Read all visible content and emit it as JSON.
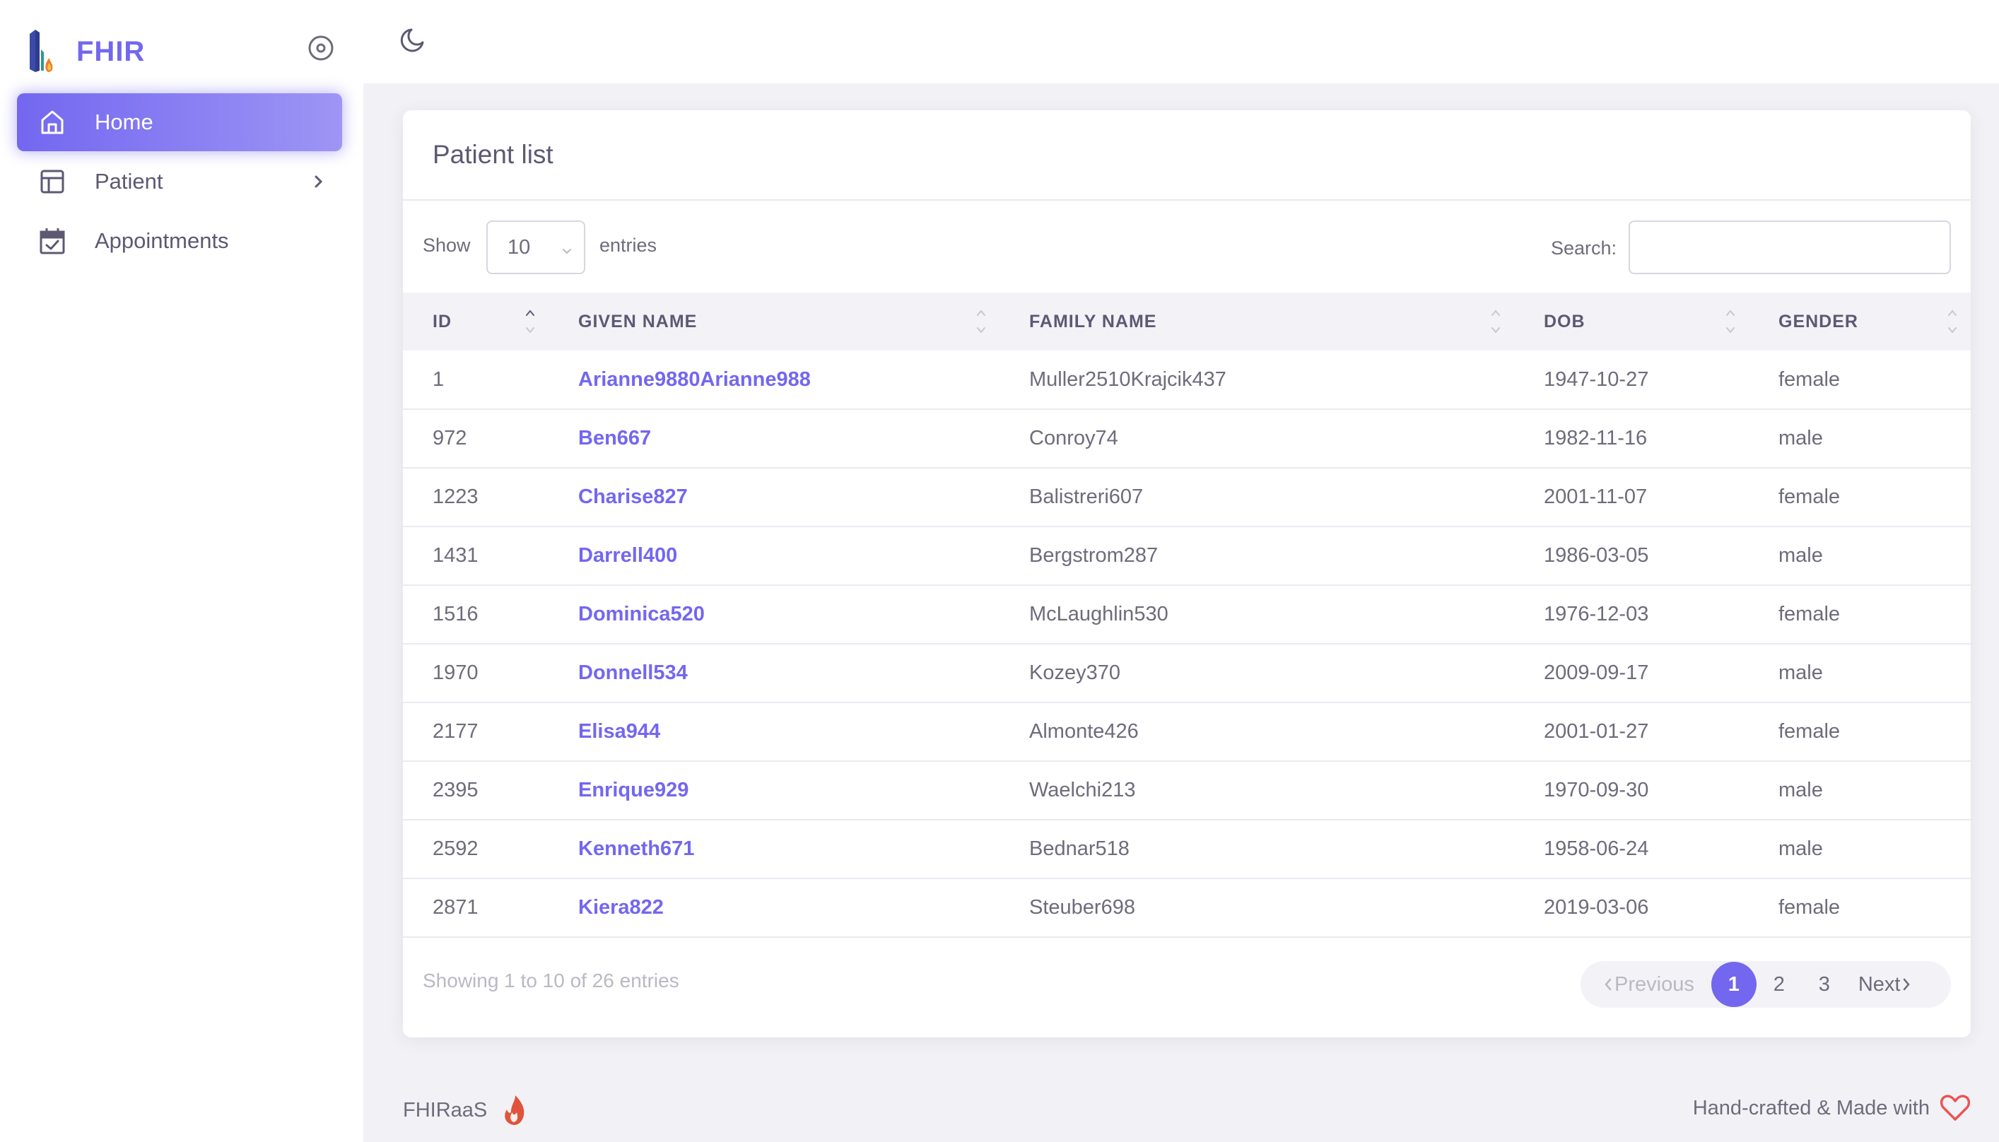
{
  "brand": {
    "name": "FHIR"
  },
  "sidebar": {
    "items": [
      {
        "label": "Home",
        "icon": "home-icon",
        "active": true
      },
      {
        "label": "Patient",
        "icon": "layout-icon",
        "has_children": true
      },
      {
        "label": "Appointments",
        "icon": "calendar-check-icon"
      }
    ]
  },
  "card": {
    "title": "Patient list"
  },
  "controls": {
    "show_label": "Show",
    "entries_value": "10",
    "entries_label": "entries",
    "search_label": "Search:",
    "search_value": ""
  },
  "table": {
    "columns": [
      "ID",
      "GIVEN NAME",
      "FAMILY NAME",
      "DOB",
      "GENDER"
    ],
    "rows": [
      {
        "id": "1",
        "given": "Arianne9880Arianne988",
        "family": "Muller2510Krajcik437",
        "dob": "1947-10-27",
        "gender": "female"
      },
      {
        "id": "972",
        "given": "Ben667",
        "family": "Conroy74",
        "dob": "1982-11-16",
        "gender": "male"
      },
      {
        "id": "1223",
        "given": "Charise827",
        "family": "Balistreri607",
        "dob": "2001-11-07",
        "gender": "female"
      },
      {
        "id": "1431",
        "given": "Darrell400",
        "family": "Bergstrom287",
        "dob": "1986-03-05",
        "gender": "male"
      },
      {
        "id": "1516",
        "given": "Dominica520",
        "family": "McLaughlin530",
        "dob": "1976-12-03",
        "gender": "female"
      },
      {
        "id": "1970",
        "given": "Donnell534",
        "family": "Kozey370",
        "dob": "2009-09-17",
        "gender": "male"
      },
      {
        "id": "2177",
        "given": "Elisa944",
        "family": "Almonte426",
        "dob": "2001-01-27",
        "gender": "female"
      },
      {
        "id": "2395",
        "given": "Enrique929",
        "family": "Waelchi213",
        "dob": "1970-09-30",
        "gender": "male"
      },
      {
        "id": "2592",
        "given": "Kenneth671",
        "family": "Bednar518",
        "dob": "1958-06-24",
        "gender": "male"
      },
      {
        "id": "2871",
        "given": "Kiera822",
        "family": "Steuber698",
        "dob": "2019-03-06",
        "gender": "female"
      }
    ]
  },
  "info": "Showing 1 to 10 of 26 entries",
  "pagination": {
    "previous": "Previous",
    "next": "Next",
    "pages": [
      "1",
      "2",
      "3"
    ],
    "current": "1"
  },
  "footer": {
    "left": "FHIRaaS",
    "right": "Hand-crafted & Made with"
  },
  "colors": {
    "accent": "#7367f0",
    "text": "#6e6b7b",
    "heading": "#5e5873",
    "heart": "#ea5455"
  }
}
